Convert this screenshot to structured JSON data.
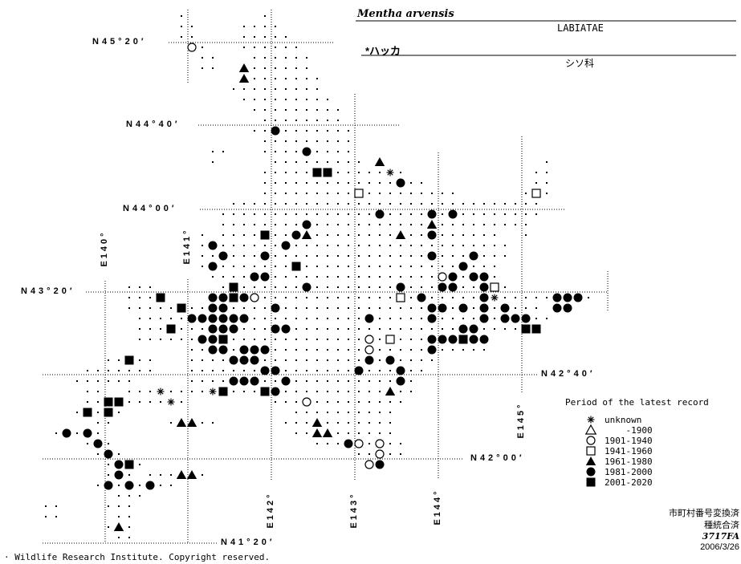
{
  "page": {
    "paper_color": "#ffffff",
    "ink_color": "#000000"
  },
  "header": {
    "species_latin": "Mentha arvensis",
    "family_latin": "LABIATAE",
    "species_japanese": "*ハッカ",
    "family_japanese": "シソ科"
  },
  "graticule": {
    "latitude_labels": [
      {
        "id": "n45-20",
        "text": "N45°20′"
      },
      {
        "id": "n44-40",
        "text": "N44°40′"
      },
      {
        "id": "n44-00",
        "text": "N44°00′"
      },
      {
        "id": "n43-20",
        "text": "N43°20′"
      },
      {
        "id": "n42-40",
        "text": "N42°40′"
      },
      {
        "id": "n42-00",
        "text": "N42°00′"
      },
      {
        "id": "n41-20",
        "text": "N41°20′"
      }
    ],
    "longitude_labels": [
      {
        "id": "e140",
        "text": "E140°"
      },
      {
        "id": "e141",
        "text": "E141°"
      },
      {
        "id": "e142",
        "text": "E142°"
      },
      {
        "id": "e143",
        "text": "E143°"
      },
      {
        "id": "e144",
        "text": "E144°"
      },
      {
        "id": "e145",
        "text": "E145°"
      }
    ]
  },
  "legend": {
    "title": "Period of the latest record",
    "entries": [
      {
        "symbol": "asterisk",
        "label": "unknown"
      },
      {
        "symbol": "open-triangle",
        "label": "    -1900"
      },
      {
        "symbol": "open-circle",
        "label": "1901-1940"
      },
      {
        "symbol": "open-square",
        "label": "1941-1960"
      },
      {
        "symbol": "filled-triangle",
        "label": "1961-1980"
      },
      {
        "symbol": "filled-circle",
        "label": "1981-2000"
      },
      {
        "symbol": "filled-square",
        "label": "2001-2020"
      }
    ]
  },
  "map_grid": {
    "symbol_key": {
      ".": "surveyed-cell-dot",
      "*": "record-unknown",
      "t": "record-pre-1900",
      "o": "record-1901-1940",
      "s": "record-1941-1960",
      "T": "record-1961-1980",
      "C": "record-1981-2000",
      "S": "record-2001-2020"
    },
    "rows": [
      "             .       .                                ",
      "             ..    ....                               ",
      "             ..    .....                              ",
      "              o.   ......                             ",
      "               ..   ......                            ",
      "               ..  T......                            ",
      "                   T.......                           ",
      "                  .........                           ",
      "                   .........                          ",
      "                    .........                         ",
      "                     ........                         ",
      "                    ..C.......                        ",
      "                     .........                        ",
      "                ..   ....C....                        ",
      "                .     ......... T               .     ",
      "                     .....SS.....*.            ..     ",
      "                     .............C..          ..     ",
      "                     .........s.........      .s.     ",
      "                  ..............................      ",
      "                 ...............C....C.C........      ",
      "                 ........C...........T.........       ",
      "               . ....S..CT........T..C......  .       ",
      "               .C......C.....................         ",
      "               ..C...C...............C...C...         ",
      "               .C.......S...............C...          ",
      "                ....CC................oC.CC.          ",
      "        ...      .S......C........C...CC..Cs.         ",
      "        ...S    CCSCo.............s.C.....C*.....CCC. ",
      "        .....S..CC....C..............CC.C.C.C... CC   ",
      "         .....CCCCCC...........C.....C....C.CCC..     ",
      "         ...S...CCC...CC................CC....SS      ",
      "         ......CCS.............o.s...CCCSCC           ",
      "              ..CC.CCC.........o.....C.....           ",
      "      ..S..   ....CCC..........C.C....                ",
      "    .......   .......CC.......C...C..                 ",
      "   ......     ....CCC..C..........C.                  ",
      "    ..  ...*....*S...SC..........T..                  ",
      "    ..SS....*.        ...o.........                   ",
      "   .S.S.                ..........                    ",
      "     ..     .TT..      ...T.......                    ",
      " .C.C.                  ..TT......                    ",
      "    .C.                   ...Co.o..                   ",
      "     .C.                      ..o..                   ",
      "      .CS.                     oC                     ",
      "      .C. ...TT.                                      ",
      "     .C.C.C..                                         ",
      "       ...                                            ",
      "..    ...                                             ",
      "..     ..                                             ",
      "      .T.                                             ",
      "       ..                                             "
    ]
  },
  "footer": {
    "copyright": "· Wildlife Research Institute. Copyright reserved."
  },
  "stamp": {
    "line1": "市町村番号変換済",
    "line2": "種統合済",
    "code": "3717FA",
    "date": "2006/3/26"
  }
}
